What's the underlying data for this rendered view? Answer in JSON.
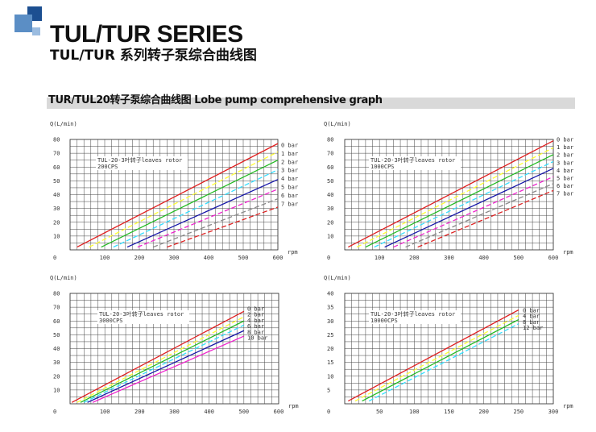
{
  "page": {
    "title": "TUL/TUR SERIES",
    "subtitle": "TUL/TUR 系列转子泵综合曲线图",
    "section_title": "TUR/TUL20转子泵综合曲线图 Lobe pump comprehensive graph",
    "brand_colors": [
      "#1c4f91",
      "#5b8ec5",
      "#9bbce0"
    ]
  },
  "chart_data": [
    {
      "type": "line",
      "ylabel": "Q(L/min)",
      "xlabel": "rpm",
      "annotation": "TUL-20-3叶转子leaves rotor",
      "annotation2": "200CPS",
      "xlim": [
        0,
        600
      ],
      "ylim": [
        0,
        80
      ],
      "xticks": [
        0,
        100,
        200,
        300,
        400,
        500,
        600
      ],
      "yticks": [
        10,
        20,
        30,
        40,
        50,
        60,
        70,
        80
      ],
      "grid": true,
      "series": [
        {
          "name": "0 bar",
          "color": "#e02020",
          "dashed": false,
          "x": [
            20,
            600
          ],
          "y": [
            2,
            77
          ]
        },
        {
          "name": "1 bar",
          "color": "#ffff33",
          "dashed": true,
          "x": [
            55,
            600
          ],
          "y": [
            2,
            71
          ]
        },
        {
          "name": "2 bar",
          "color": "#22bb22",
          "dashed": false,
          "x": [
            90,
            600
          ],
          "y": [
            2,
            65
          ]
        },
        {
          "name": "3 bar",
          "color": "#33ddff",
          "dashed": true,
          "x": [
            125,
            600
          ],
          "y": [
            2,
            58
          ]
        },
        {
          "name": "4 bar",
          "color": "#1515a8",
          "dashed": false,
          "x": [
            165,
            600
          ],
          "y": [
            2,
            51
          ]
        },
        {
          "name": "5 bar",
          "color": "#ee22cc",
          "dashed": true,
          "x": [
            195,
            600
          ],
          "y": [
            2,
            44
          ]
        },
        {
          "name": "6 bar",
          "color": "#888888",
          "dashed": true,
          "x": [
            240,
            600
          ],
          "y": [
            2,
            37
          ]
        },
        {
          "name": "7 bar",
          "color": "#dd2222",
          "dashed": true,
          "x": [
            280,
            600
          ],
          "y": [
            2,
            31
          ]
        }
      ]
    },
    {
      "type": "line",
      "ylabel": "Q(L/min)",
      "xlabel": "rpm",
      "annotation": "TUL-20-3叶转子leaves rotor",
      "annotation2": "1000CPS",
      "xlim": [
        0,
        600
      ],
      "ylim": [
        0,
        80
      ],
      "xticks": [
        0,
        100,
        200,
        300,
        400,
        500,
        600
      ],
      "yticks": [
        10,
        20,
        30,
        40,
        50,
        60,
        70,
        80
      ],
      "grid": true,
      "series": [
        {
          "name": "0 bar",
          "color": "#e02020",
          "dashed": false,
          "x": [
            10,
            600
          ],
          "y": [
            2,
            79
          ]
        },
        {
          "name": "1 bar",
          "color": "#ffff33",
          "dashed": true,
          "x": [
            35,
            600
          ],
          "y": [
            2,
            74
          ]
        },
        {
          "name": "2 bar",
          "color": "#22bb22",
          "dashed": false,
          "x": [
            60,
            600
          ],
          "y": [
            2,
            69
          ]
        },
        {
          "name": "3 bar",
          "color": "#33ddff",
          "dashed": true,
          "x": [
            85,
            600
          ],
          "y": [
            2,
            64
          ]
        },
        {
          "name": "4 bar",
          "color": "#1515a8",
          "dashed": false,
          "x": [
            115,
            600
          ],
          "y": [
            2,
            59
          ]
        },
        {
          "name": "5 bar",
          "color": "#ee22cc",
          "dashed": true,
          "x": [
            140,
            600
          ],
          "y": [
            2,
            53
          ]
        },
        {
          "name": "6 bar",
          "color": "#888888",
          "dashed": true,
          "x": [
            175,
            600
          ],
          "y": [
            2,
            48
          ]
        },
        {
          "name": "7 bar",
          "color": "#dd2222",
          "dashed": true,
          "x": [
            210,
            600
          ],
          "y": [
            2,
            43
          ]
        }
      ]
    },
    {
      "type": "line",
      "ylabel": "Q(L/min)",
      "xlabel": "rpm",
      "annotation": "TUL-20-3叶转子leaves rotor",
      "annotation2": "3000CPS",
      "xlim": [
        0,
        600
      ],
      "ylim": [
        0,
        80
      ],
      "xticks": [
        0,
        100,
        200,
        300,
        400,
        500,
        600
      ],
      "yticks": [
        10,
        20,
        30,
        40,
        50,
        60,
        70,
        80
      ],
      "grid": true,
      "series": [
        {
          "name": "0 bar",
          "color": "#e02020",
          "dashed": false,
          "x": [
            5,
            500
          ],
          "y": [
            1,
            67
          ]
        },
        {
          "name": "2 bar",
          "color": "#ffff33",
          "dashed": true,
          "x": [
            20,
            500
          ],
          "y": [
            1,
            63
          ]
        },
        {
          "name": "4 bar",
          "color": "#22bb22",
          "dashed": false,
          "x": [
            30,
            500
          ],
          "y": [
            1,
            60
          ]
        },
        {
          "name": "6 bar",
          "color": "#33ddff",
          "dashed": true,
          "x": [
            40,
            500
          ],
          "y": [
            1,
            57
          ]
        },
        {
          "name": "8 bar",
          "color": "#1515a8",
          "dashed": false,
          "x": [
            50,
            500
          ],
          "y": [
            1,
            53
          ]
        },
        {
          "name": "10 bar",
          "color": "#ee22cc",
          "dashed": false,
          "x": [
            65,
            500
          ],
          "y": [
            1,
            49
          ]
        }
      ]
    },
    {
      "type": "line",
      "ylabel": "Q(L/min)",
      "xlabel": "rpm",
      "annotation": "TUL-20-3叶转子leaves rotor",
      "annotation2": "10000CPS",
      "xlim": [
        0,
        300
      ],
      "ylim": [
        0,
        40
      ],
      "xticks": [
        0,
        50,
        100,
        150,
        200,
        250,
        300
      ],
      "yticks": [
        5,
        10,
        15,
        20,
        25,
        30,
        35,
        40
      ],
      "grid": true,
      "series": [
        {
          "name": "0 bar",
          "color": "#e02020",
          "dashed": false,
          "x": [
            5,
            250
          ],
          "y": [
            1,
            34
          ]
        },
        {
          "name": "4 bar",
          "color": "#ffff33",
          "dashed": true,
          "x": [
            15,
            250
          ],
          "y": [
            1,
            32
          ]
        },
        {
          "name": "8 bar",
          "color": "#22bb22",
          "dashed": false,
          "x": [
            25,
            250
          ],
          "y": [
            1,
            30.5
          ]
        },
        {
          "name": "12 bar",
          "color": "#33ddff",
          "dashed": true,
          "x": [
            35,
            250
          ],
          "y": [
            1,
            29
          ]
        }
      ]
    }
  ]
}
